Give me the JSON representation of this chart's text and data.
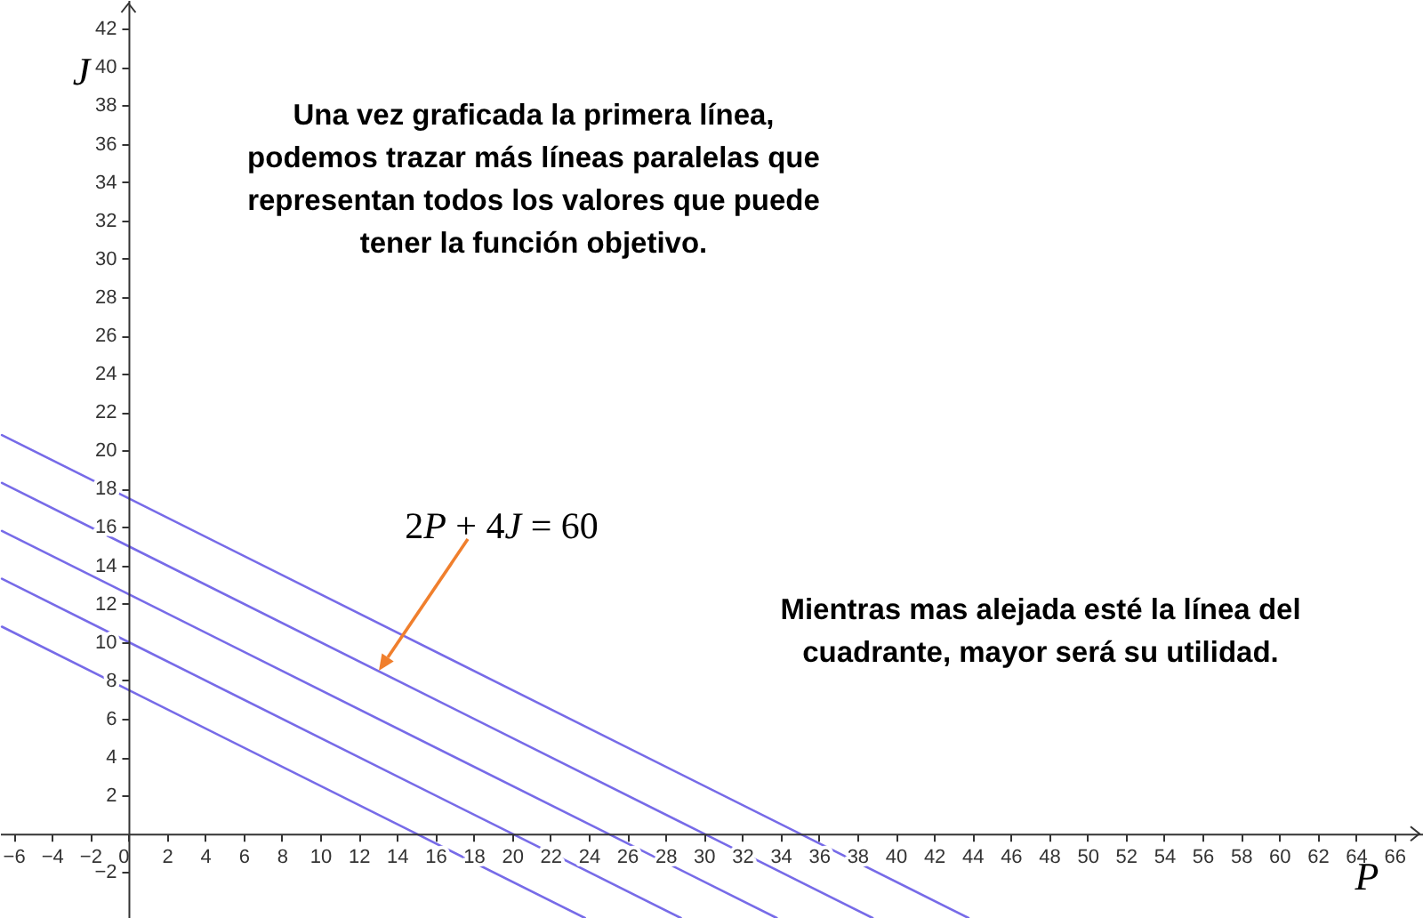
{
  "chart_data": {
    "type": "line",
    "xlabel": "P",
    "ylabel": "J",
    "annotations": [
      "Una vez graficada la primera línea, podemos trazar más líneas paralelas que representan todos los valores que puede tener la función objetivo.",
      "2P + 4J = 60",
      "Mientras mas alejada esté la línea del cuadrante, mayor será su utilidad."
    ],
    "series": [
      {
        "color": "#776be8",
        "x": [
          -6.6,
          0,
          15,
          23.8
        ],
        "values": [
          10.8,
          7.5,
          0,
          -4.4
        ]
      },
      {
        "color": "#776be8",
        "x": [
          -6.6,
          0,
          20,
          28.8
        ],
        "values": [
          13.3,
          10,
          0,
          -4.4
        ]
      },
      {
        "color": "#776be8",
        "x": [
          -6.6,
          0,
          25,
          33.8
        ],
        "values": [
          15.8,
          12.5,
          0,
          -4.4
        ]
      },
      {
        "color": "#776be8",
        "x": [
          -6.6,
          0,
          30,
          38.8
        ],
        "values": [
          18.3,
          15,
          0,
          -4.4
        ]
      },
      {
        "color": "#776be8",
        "x": [
          -6.6,
          0,
          35,
          43.8
        ],
        "values": [
          20.8,
          17.5,
          0,
          -4.4
        ]
      }
    ],
    "xlim": [
      -6.7,
      67.5
    ],
    "ylim": [
      -4.4,
      43.5
    ],
    "xticks": [
      -6,
      -4,
      -2,
      0,
      2,
      4,
      6,
      8,
      10,
      12,
      14,
      16,
      18,
      20,
      22,
      24,
      26,
      28,
      30,
      32,
      34,
      36,
      38,
      40,
      42,
      44,
      46,
      48,
      50,
      52,
      54,
      56,
      58,
      60,
      62,
      64,
      66
    ],
    "yticks": [
      -2,
      2,
      4,
      6,
      8,
      10,
      12,
      14,
      16,
      18,
      20,
      22,
      24,
      26,
      28,
      30,
      32,
      34,
      36,
      38,
      40,
      42
    ]
  }
}
